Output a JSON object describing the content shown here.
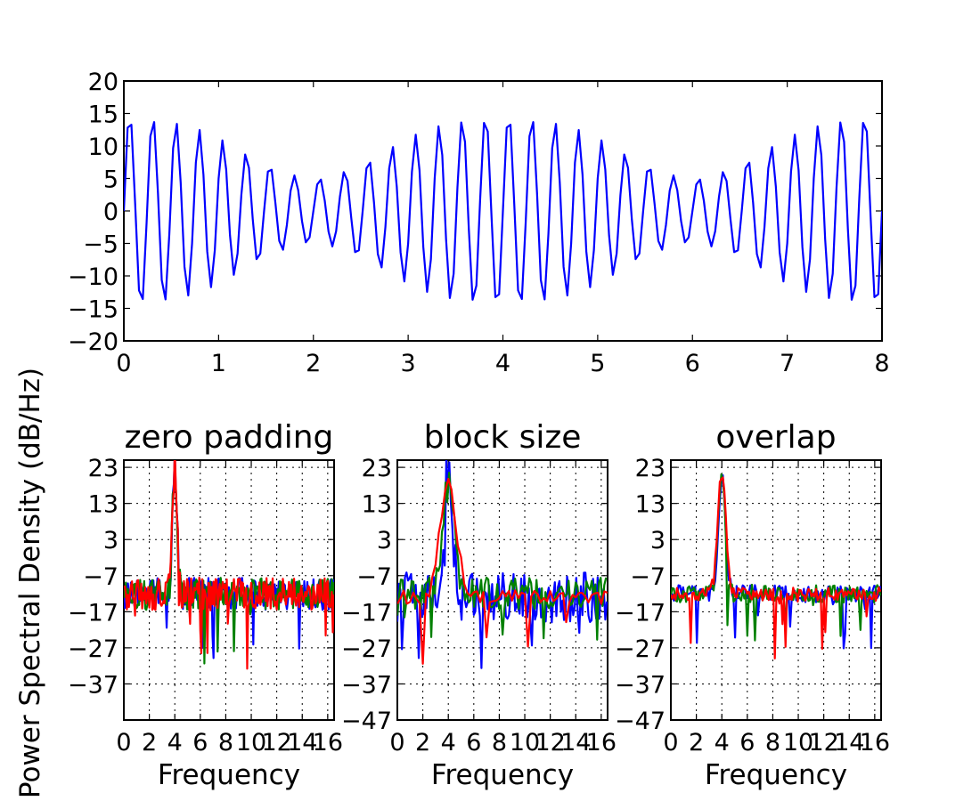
{
  "chart_data": [
    {
      "type": "line",
      "panel": "time-signal",
      "title": "",
      "xlabel": "",
      "ylabel": "",
      "xlim": [
        0,
        8
      ],
      "ylim": [
        -20,
        20
      ],
      "x_ticks": [
        "0",
        "1",
        "2",
        "3",
        "4",
        "5",
        "6",
        "7",
        "8"
      ],
      "y_ticks": [
        "20",
        "15",
        "10",
        "5",
        "0",
        "−5",
        "−10",
        "−15",
        "−20"
      ],
      "grid": false,
      "series": [
        {
          "color": "#0000ff",
          "signal": {
            "description_note": "",
            "dt": 0.04,
            "x_start": 0,
            "x_end": 8,
            "components": [
              {
                "amplitude": 10,
                "frequency": 4
              },
              {
                "amplitude": 5,
                "frequency": 4.25
              }
            ]
          }
        }
      ]
    },
    {
      "type": "line",
      "panel": "psd-zero-padding",
      "title": "zero padding",
      "xlabel": "Frequency",
      "ylabel": "Power Spectral Density (dB/Hz)",
      "xlim": [
        0,
        16.5
      ],
      "ylim": [
        -47,
        25
      ],
      "x_ticks": [
        "0",
        "2",
        "4",
        "6",
        "8",
        "10",
        "12",
        "14",
        "16"
      ],
      "y_ticks": [
        "23",
        "13",
        "3",
        "−7",
        "−17",
        "−27",
        "−37"
      ],
      "grid": true,
      "peak_frequency": 4,
      "series": [
        {
          "color": "#0000ff",
          "peak_db": 24,
          "floor_db": -12
        },
        {
          "color": "#008000",
          "peak_db": 24,
          "floor_db": -12
        },
        {
          "color": "#ff0000",
          "peak_db": 24,
          "floor_db": -12
        }
      ]
    },
    {
      "type": "line",
      "panel": "psd-block-size",
      "title": "block size",
      "xlabel": "Frequency",
      "ylabel": "",
      "xlim": [
        0,
        16.5
      ],
      "ylim": [
        -47,
        25
      ],
      "x_ticks": [
        "0",
        "2",
        "4",
        "6",
        "8",
        "10",
        "12",
        "14",
        "16"
      ],
      "y_ticks": [
        "23",
        "13",
        "3",
        "−7",
        "−17",
        "−27",
        "−37",
        "−47"
      ],
      "grid": true,
      "peak_frequency": 4,
      "series": [
        {
          "color": "#0000ff",
          "peak_db": 23,
          "floor_db": -13
        },
        {
          "color": "#008000",
          "peak_db": 21,
          "floor_db": -12
        },
        {
          "color": "#ff0000",
          "peak_db": 19,
          "floor_db": -13
        }
      ]
    },
    {
      "type": "line",
      "panel": "psd-overlap",
      "title": "overlap",
      "xlabel": "Frequency",
      "ylabel": "",
      "xlim": [
        0,
        16.5
      ],
      "ylim": [
        -47,
        25
      ],
      "x_ticks": [
        "0",
        "2",
        "4",
        "6",
        "8",
        "10",
        "12",
        "14",
        "16"
      ],
      "y_ticks": [
        "23",
        "13",
        "3",
        "−7",
        "−17",
        "−27",
        "−37",
        "−47"
      ],
      "grid": true,
      "peak_frequency": 4,
      "series": [
        {
          "color": "#0000ff",
          "peak_db": 20,
          "floor_db": -12
        },
        {
          "color": "#008000",
          "peak_db": 20,
          "floor_db": -12
        },
        {
          "color": "#ff0000",
          "peak_db": 21,
          "floor_db": -12
        }
      ]
    }
  ]
}
